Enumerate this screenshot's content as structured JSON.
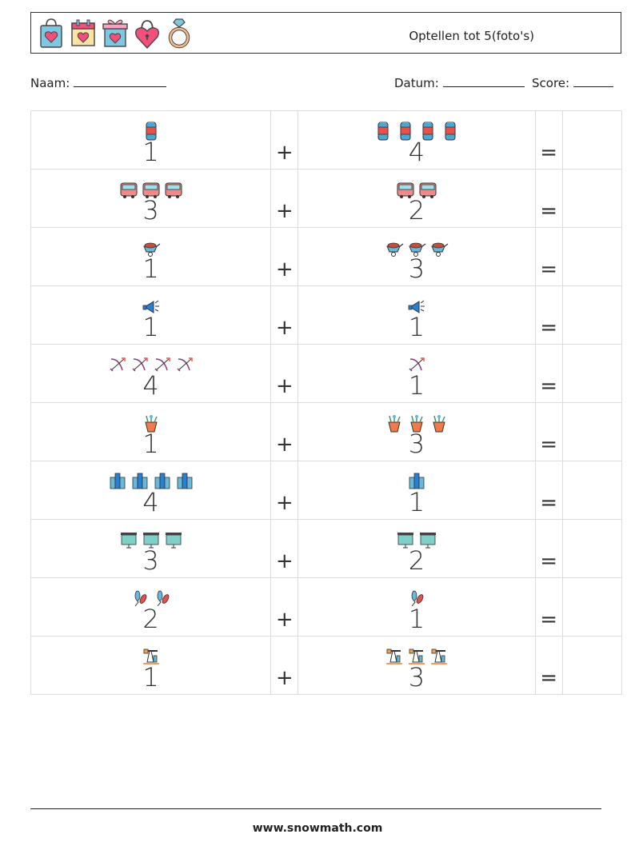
{
  "header": {
    "title": "Optellen tot 5(foto's)",
    "icons": [
      "shopping-bag-heart-icon",
      "calendar-heart-icon",
      "gift-box-heart-icon",
      "heart-lock-icon",
      "diamond-ring-icon"
    ]
  },
  "info": {
    "naam_label": "Naam:",
    "datum_label": "Datum:",
    "score_label": "Score:"
  },
  "operators": {
    "plus": "+",
    "equals": "="
  },
  "rows": [
    {
      "a": {
        "count": 1,
        "icon": "soda-can-icon",
        "label": "1"
      },
      "b": {
        "count": 4,
        "icon": "soda-can-icon",
        "label": "4"
      }
    },
    {
      "a": {
        "count": 3,
        "icon": "bus-icon",
        "label": "3"
      },
      "b": {
        "count": 2,
        "icon": "bus-icon",
        "label": "2"
      }
    },
    {
      "a": {
        "count": 1,
        "icon": "wheelbarrow-icon",
        "label": "1"
      },
      "b": {
        "count": 3,
        "icon": "wheelbarrow-icon",
        "label": "3"
      }
    },
    {
      "a": {
        "count": 1,
        "icon": "megaphone-icon",
        "label": "1"
      },
      "b": {
        "count": 1,
        "icon": "megaphone-icon",
        "label": "1"
      }
    },
    {
      "a": {
        "count": 4,
        "icon": "bow-arrow-icon",
        "label": "4"
      },
      "b": {
        "count": 1,
        "icon": "bow-arrow-icon",
        "label": "1"
      }
    },
    {
      "a": {
        "count": 1,
        "icon": "flower-pot-icon",
        "label": "1"
      },
      "b": {
        "count": 3,
        "icon": "flower-pot-icon",
        "label": "3"
      }
    },
    {
      "a": {
        "count": 4,
        "icon": "building-icon",
        "label": "4"
      },
      "b": {
        "count": 1,
        "icon": "building-icon",
        "label": "1"
      }
    },
    {
      "a": {
        "count": 3,
        "icon": "projector-screen-icon",
        "label": "3"
      },
      "b": {
        "count": 2,
        "icon": "projector-screen-icon",
        "label": "2"
      }
    },
    {
      "a": {
        "count": 2,
        "icon": "juggling-club-icon",
        "label": "2"
      },
      "b": {
        "count": 1,
        "icon": "juggling-club-icon",
        "label": "1"
      }
    },
    {
      "a": {
        "count": 1,
        "icon": "oil-pump-icon",
        "label": "1"
      },
      "b": {
        "count": 3,
        "icon": "oil-pump-icon",
        "label": "3"
      }
    }
  ],
  "footer": {
    "url": "www.snowmath.com"
  }
}
